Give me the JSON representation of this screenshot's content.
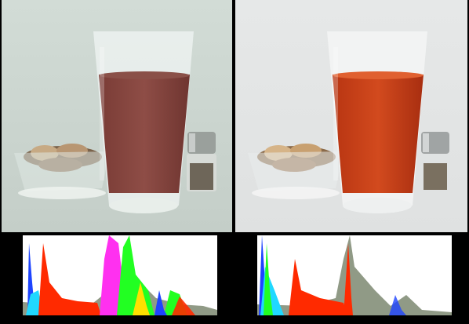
{
  "panels": [
    {
      "id": "left",
      "description_color": {
        "background": "#cfd9d3",
        "drink": "#8a4a45",
        "drink_top": "#7d4038",
        "glass": "#eef3f1"
      },
      "histogram_colors": [
        "#1e44ff",
        "#20d8ff",
        "#ff2a00",
        "#ff30f0",
        "#22ff22",
        "#ffe000",
        "#909a86"
      ]
    },
    {
      "id": "right",
      "description_color": {
        "background": "#e4e6e6",
        "drink": "#c7401a",
        "drink_top": "#d24a1e",
        "glass": "#f5f6f6"
      },
      "histogram_colors": [
        "#1e44ff",
        "#20d8ff",
        "#ff2a00",
        "#22ff22",
        "#909a86"
      ]
    }
  ]
}
